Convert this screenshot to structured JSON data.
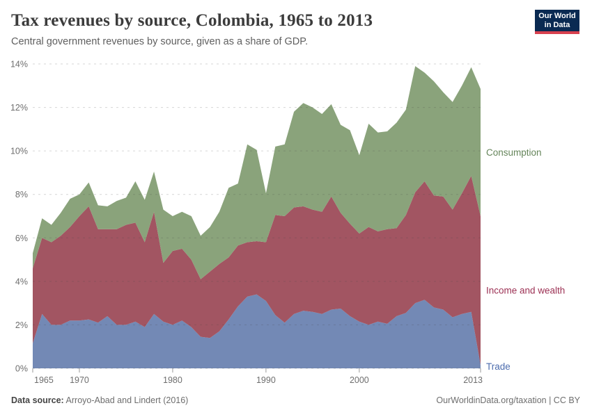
{
  "logo": {
    "line1": "Our World",
    "line2": "in Data",
    "bg_color": "#0a2a52",
    "bar_color": "#d8414f"
  },
  "footer": {
    "source_label": "Data source:",
    "source_value": "Arroyo-Abad and Lindert (2016)",
    "credit": "OurWorldinData.org/taxation | CC BY"
  },
  "chart_data": {
    "type": "area",
    "stacked": true,
    "title": "Tax revenues by source, Colombia, 1965 to 2013",
    "subtitle": "Central government revenues by source, given as a share of GDP.",
    "xlabel": "",
    "ylabel": "share of GDP",
    "unit": "%",
    "grid": "dashed-horizontal",
    "legend_position": "right-inline-labels",
    "ylim": [
      0,
      14
    ],
    "y_ticks": [
      {
        "v": 0,
        "label": "0%"
      },
      {
        "v": 2,
        "label": "2%"
      },
      {
        "v": 4,
        "label": "4%"
      },
      {
        "v": 6,
        "label": "6%"
      },
      {
        "v": 8,
        "label": "8%"
      },
      {
        "v": 10,
        "label": "10%"
      },
      {
        "v": 12,
        "label": "12%"
      },
      {
        "v": 14,
        "label": "14%"
      }
    ],
    "x_ticks": [
      {
        "v": 1965,
        "label": "1965"
      },
      {
        "v": 1970,
        "label": "1970"
      },
      {
        "v": 1980,
        "label": "1980"
      },
      {
        "v": 1990,
        "label": "1990"
      },
      {
        "v": 2000,
        "label": "2000"
      },
      {
        "v": 2013,
        "label": "2013"
      }
    ],
    "x": [
      1965,
      1966,
      1967,
      1968,
      1969,
      1970,
      1971,
      1972,
      1973,
      1974,
      1975,
      1976,
      1977,
      1978,
      1979,
      1980,
      1981,
      1982,
      1983,
      1984,
      1985,
      1986,
      1987,
      1988,
      1989,
      1990,
      1991,
      1992,
      1993,
      1994,
      1995,
      1996,
      1997,
      1998,
      1999,
      2000,
      2001,
      2002,
      2003,
      2004,
      2005,
      2006,
      2007,
      2008,
      2009,
      2010,
      2011,
      2012,
      2013
    ],
    "series": [
      {
        "name": "Trade",
        "color": "#7389b5",
        "label_color": "#4c6cae",
        "values": [
          1.15,
          2.5,
          2.0,
          2.0,
          2.2,
          2.2,
          2.25,
          2.1,
          2.4,
          2.0,
          2.0,
          2.15,
          1.9,
          2.5,
          2.15,
          2.0,
          2.2,
          1.9,
          1.45,
          1.4,
          1.7,
          2.25,
          2.85,
          3.3,
          3.4,
          3.1,
          2.45,
          2.1,
          2.5,
          2.65,
          2.6,
          2.5,
          2.7,
          2.75,
          2.4,
          2.15,
          2.0,
          2.15,
          2.05,
          2.4,
          2.55,
          3.0,
          3.15,
          2.8,
          2.7,
          2.35,
          2.5,
          2.6,
          0.15
        ]
      },
      {
        "name": "Income and wealth",
        "color": "#a25562",
        "label_color": "#9c3154",
        "values": [
          3.45,
          3.5,
          3.8,
          4.1,
          4.3,
          4.8,
          5.2,
          4.3,
          4.0,
          4.4,
          4.6,
          4.55,
          3.9,
          4.7,
          2.7,
          3.4,
          3.3,
          3.1,
          2.65,
          3.05,
          3.1,
          2.85,
          2.8,
          2.5,
          2.45,
          2.7,
          4.6,
          4.9,
          4.9,
          4.8,
          4.7,
          4.7,
          5.2,
          4.4,
          4.25,
          4.05,
          4.5,
          4.15,
          4.35,
          4.05,
          4.5,
          5.1,
          5.45,
          5.15,
          5.2,
          4.95,
          5.55,
          6.25,
          6.85
        ]
      },
      {
        "name": "Consumption",
        "color": "#8aa37b",
        "label_color": "#65855a",
        "values": [
          0.7,
          0.9,
          0.8,
          1.05,
          1.3,
          1.0,
          1.1,
          1.1,
          1.05,
          1.3,
          1.25,
          1.9,
          1.95,
          1.85,
          2.45,
          1.6,
          1.7,
          2.0,
          2.0,
          2.05,
          2.4,
          3.2,
          2.85,
          4.5,
          4.2,
          2.25,
          3.15,
          3.3,
          4.4,
          4.75,
          4.7,
          4.5,
          4.25,
          4.05,
          4.3,
          3.6,
          4.75,
          4.55,
          4.5,
          4.85,
          4.85,
          5.8,
          5.0,
          5.25,
          4.8,
          4.95,
          4.95,
          5.0,
          5.85
        ]
      }
    ]
  }
}
